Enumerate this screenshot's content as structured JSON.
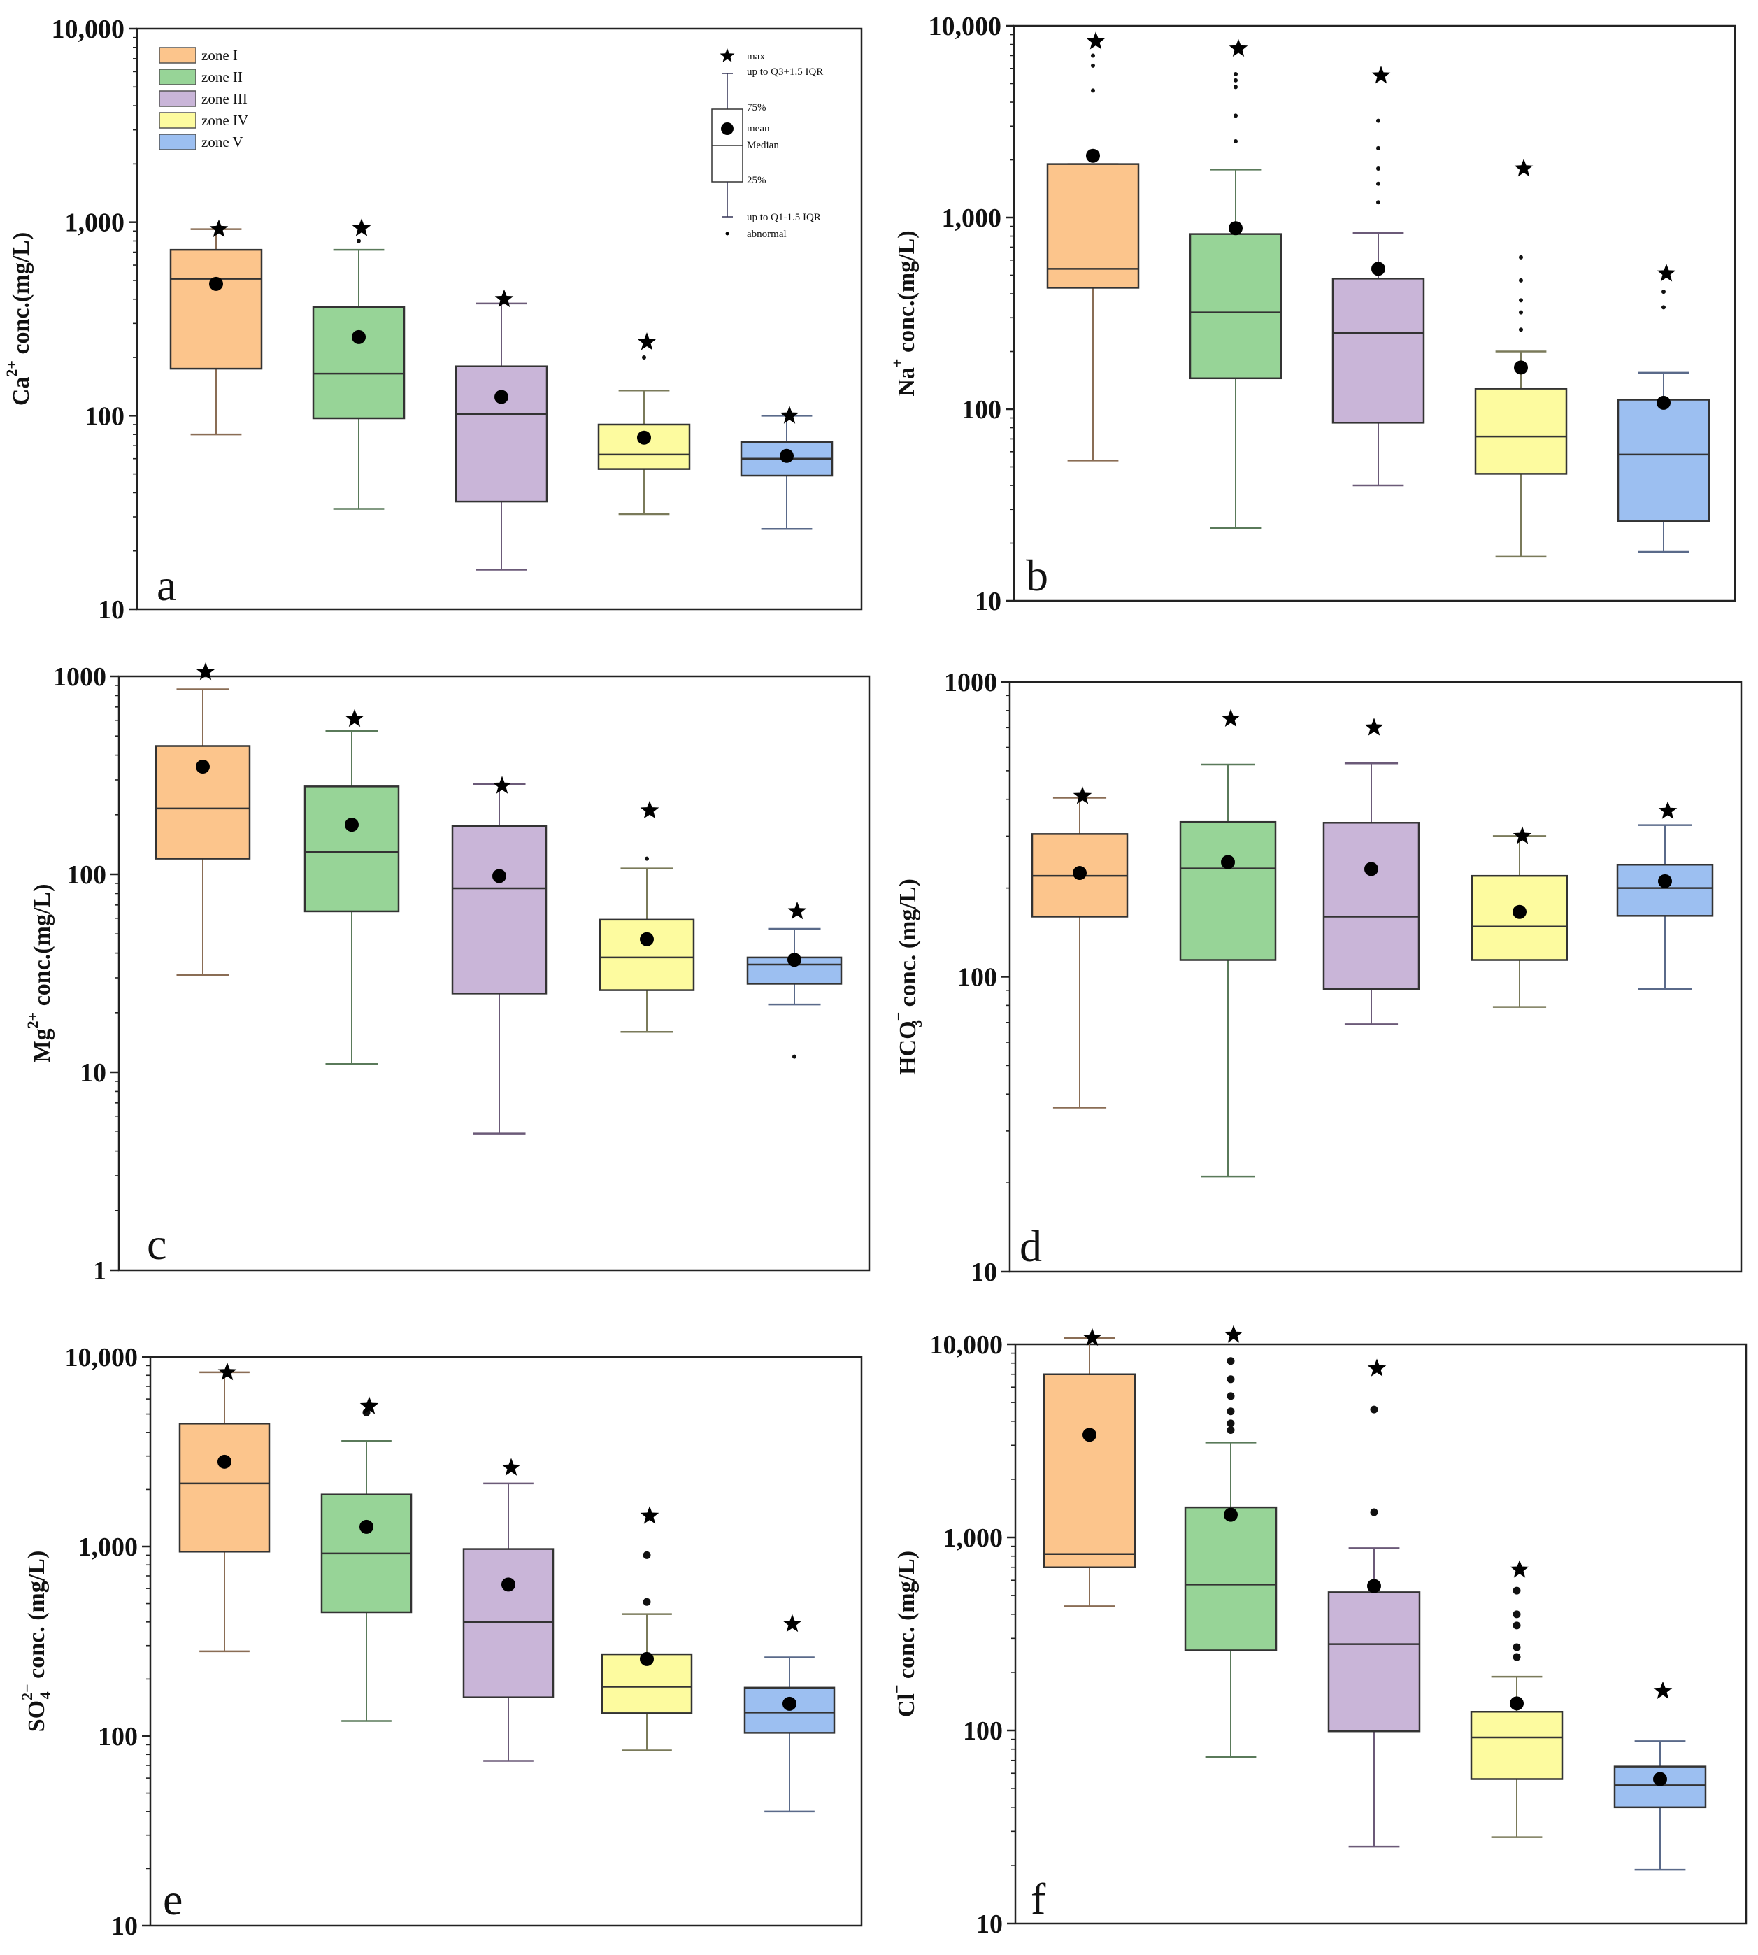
{
  "zones": [
    {
      "name": "zone I",
      "fill": "#fcc58c",
      "stroke": "#8a6d55"
    },
    {
      "name": "zone II",
      "fill": "#97d497",
      "stroke": "#5a7a5a"
    },
    {
      "name": "zone III",
      "fill": "#c9b5d8",
      "stroke": "#6b5a78"
    },
    {
      "name": "zone IV",
      "fill": "#fdfb9f",
      "stroke": "#7a7a5a"
    },
    {
      "name": "zone V",
      "fill": "#9cbff1",
      "stroke": "#5a6a8a"
    }
  ],
  "legend_key": {
    "max": "max",
    "whisker_top": "up to Q3+1.5 IQR",
    "q3": "75%",
    "mean": "mean",
    "median": "Median",
    "q1": "25%",
    "whisker_bottom": "up to Q1-1.5 IQR",
    "abnormal": "abnormal"
  },
  "chart_data": [
    {
      "type": "box",
      "panel": "a",
      "ylabel_main": "Ca",
      "ylabel_sup": "2+",
      "ylabel_sub": "",
      "ylabel_rest": " conc.(mg/L)",
      "yscale": "log",
      "ylim": [
        10,
        10000
      ],
      "yticks": [
        {
          "v": 10,
          "label": "10"
        },
        {
          "v": 100,
          "label": "100"
        },
        {
          "v": 1000,
          "label": "1,000"
        },
        {
          "v": 10000,
          "label": "10,000"
        }
      ],
      "series": [
        {
          "zone": "zone I",
          "whisker_low": 80,
          "q1": 175,
          "median": 510,
          "q3": 720,
          "whisker_high": 920,
          "mean": 480,
          "max": 920,
          "outliers": []
        },
        {
          "zone": "zone II",
          "whisker_low": 33,
          "q1": 97,
          "median": 165,
          "q3": 365,
          "whisker_high": 720,
          "mean": 255,
          "max": 930,
          "outliers": [
            800
          ]
        },
        {
          "zone": "zone III",
          "whisker_low": 16,
          "q1": 36,
          "median": 102,
          "q3": 180,
          "whisker_high": 380,
          "mean": 125,
          "max": 400,
          "outliers": []
        },
        {
          "zone": "zone IV",
          "whisker_low": 31,
          "q1": 53,
          "median": 63,
          "q3": 90,
          "whisker_high": 135,
          "mean": 77,
          "max": 240,
          "outliers": [
            200
          ]
        },
        {
          "zone": "zone V",
          "whisker_low": 26,
          "q1": 49,
          "median": 60,
          "q3": 73,
          "whisker_high": 100,
          "mean": 62,
          "max": 100,
          "outliers": []
        }
      ]
    },
    {
      "type": "box",
      "panel": "b",
      "ylabel_main": "Na",
      "ylabel_sup": "+",
      "ylabel_sub": "",
      "ylabel_rest": " conc.(mg/L)",
      "yscale": "log",
      "ylim": [
        10,
        10000
      ],
      "yticks": [
        {
          "v": 10,
          "label": "10"
        },
        {
          "v": 100,
          "label": "100"
        },
        {
          "v": 1000,
          "label": "1,000"
        },
        {
          "v": 10000,
          "label": "10,000"
        }
      ],
      "series": [
        {
          "zone": "zone I",
          "whisker_low": 54,
          "q1": 430,
          "median": 540,
          "q3": 1900,
          "whisker_high": 1900,
          "mean": 2100,
          "max": 8300,
          "outliers": [
            7000,
            6200,
            4600
          ]
        },
        {
          "zone": "zone II",
          "whisker_low": 24,
          "q1": 145,
          "median": 320,
          "q3": 820,
          "whisker_high": 1780,
          "mean": 880,
          "max": 7600,
          "outliers": [
            5600,
            5200,
            4800,
            3400,
            2500
          ]
        },
        {
          "zone": "zone III",
          "whisker_low": 40,
          "q1": 85,
          "median": 250,
          "q3": 480,
          "whisker_high": 830,
          "mean": 540,
          "max": 5500,
          "outliers": [
            3200,
            2300,
            1800,
            1500,
            1200
          ]
        },
        {
          "zone": "zone IV",
          "whisker_low": 17,
          "q1": 46,
          "median": 72,
          "q3": 128,
          "whisker_high": 200,
          "mean": 165,
          "max": 1800,
          "outliers": [
            620,
            470,
            370,
            320,
            260
          ]
        },
        {
          "zone": "zone V",
          "whisker_low": 18,
          "q1": 26,
          "median": 58,
          "q3": 112,
          "whisker_high": 155,
          "mean": 108,
          "max": 510,
          "outliers": [
            410,
            340
          ]
        }
      ]
    },
    {
      "type": "box",
      "panel": "c",
      "ylabel_main": "Mg",
      "ylabel_sup": "2+",
      "ylabel_sub": "",
      "ylabel_rest": " conc.(mg/L)",
      "yscale": "log",
      "ylim": [
        1,
        1000
      ],
      "yticks": [
        {
          "v": 1,
          "label": "1"
        },
        {
          "v": 10,
          "label": "10"
        },
        {
          "v": 100,
          "label": "100"
        },
        {
          "v": 1000,
          "label": "1000"
        }
      ],
      "series": [
        {
          "zone": "zone I",
          "whisker_low": 31,
          "q1": 120,
          "median": 215,
          "q3": 445,
          "whisker_high": 860,
          "mean": 350,
          "max": 1050,
          "outliers": []
        },
        {
          "zone": "zone II",
          "whisker_low": 11,
          "q1": 65,
          "median": 130,
          "q3": 278,
          "whisker_high": 530,
          "mean": 178,
          "max": 610,
          "outliers": []
        },
        {
          "zone": "zone III",
          "whisker_low": 4.9,
          "q1": 25,
          "median": 85,
          "q3": 175,
          "whisker_high": 285,
          "mean": 98,
          "max": 280,
          "outliers": []
        },
        {
          "zone": "zone IV",
          "whisker_low": 16,
          "q1": 26,
          "median": 38,
          "q3": 59,
          "whisker_high": 107,
          "mean": 47,
          "max": 210,
          "outliers": [
            120
          ]
        },
        {
          "zone": "zone V",
          "whisker_low": 22,
          "q1": 28,
          "median": 35,
          "q3": 38,
          "whisker_high": 53,
          "mean": 37,
          "max": 65,
          "outliers": [
            12
          ]
        }
      ]
    },
    {
      "type": "box",
      "panel": "d",
      "ylabel_main": "HCO",
      "ylabel_sup": "−",
      "ylabel_sub": "3",
      "ylabel_rest": " conc. (mg/L)",
      "yscale": "log",
      "ylim": [
        10,
        1000
      ],
      "yticks": [
        {
          "v": 10,
          "label": "10"
        },
        {
          "v": 100,
          "label": "100"
        },
        {
          "v": 1000,
          "label": "1000"
        }
      ],
      "series": [
        {
          "zone": "zone I",
          "whisker_low": 36,
          "q1": 160,
          "median": 220,
          "q3": 305,
          "whisker_high": 405,
          "mean": 225,
          "max": 410,
          "outliers": []
        },
        {
          "zone": "zone II",
          "whisker_low": 21,
          "q1": 114,
          "median": 233,
          "q3": 335,
          "whisker_high": 525,
          "mean": 245,
          "max": 750,
          "outliers": []
        },
        {
          "zone": "zone III",
          "whisker_low": 69,
          "q1": 91,
          "median": 160,
          "q3": 333,
          "whisker_high": 530,
          "mean": 232,
          "max": 700,
          "outliers": []
        },
        {
          "zone": "zone IV",
          "whisker_low": 79,
          "q1": 114,
          "median": 148,
          "q3": 220,
          "whisker_high": 300,
          "mean": 166,
          "max": 300,
          "outliers": []
        },
        {
          "zone": "zone V",
          "whisker_low": 91,
          "q1": 161,
          "median": 200,
          "q3": 240,
          "whisker_high": 327,
          "mean": 211,
          "max": 365,
          "outliers": []
        }
      ]
    },
    {
      "type": "box",
      "panel": "e",
      "ylabel_main": "SO",
      "ylabel_sup": "2−",
      "ylabel_sub": "4",
      "ylabel_rest": " conc. (mg/L)",
      "yscale": "log",
      "ylim": [
        10,
        10000
      ],
      "yticks": [
        {
          "v": 10,
          "label": "10"
        },
        {
          "v": 100,
          "label": "100"
        },
        {
          "v": 1000,
          "label": "1,000"
        },
        {
          "v": 10000,
          "label": "10,000"
        }
      ],
      "series": [
        {
          "zone": "zone I",
          "whisker_low": 280,
          "q1": 940,
          "median": 2150,
          "q3": 4450,
          "whisker_high": 8300,
          "mean": 2800,
          "max": 8300,
          "outliers": []
        },
        {
          "zone": "zone II",
          "whisker_low": 120,
          "q1": 450,
          "median": 920,
          "q3": 1880,
          "whisker_high": 3600,
          "mean": 1270,
          "max": 5500,
          "outliers": [
            5100
          ]
        },
        {
          "zone": "zone III",
          "whisker_low": 74,
          "q1": 160,
          "median": 400,
          "q3": 970,
          "whisker_high": 2150,
          "mean": 630,
          "max": 2600,
          "outliers": []
        },
        {
          "zone": "zone IV",
          "whisker_low": 84,
          "q1": 132,
          "median": 182,
          "q3": 270,
          "whisker_high": 440,
          "mean": 255,
          "max": 1450,
          "outliers": [
            900,
            510
          ]
        },
        {
          "zone": "zone V",
          "whisker_low": 40,
          "q1": 104,
          "median": 133,
          "q3": 180,
          "whisker_high": 260,
          "mean": 148,
          "max": 390,
          "outliers": []
        }
      ]
    },
    {
      "type": "box",
      "panel": "f",
      "ylabel_main": "Cl",
      "ylabel_sup": "−",
      "ylabel_sub": "",
      "ylabel_rest": " conc. (mg/L)",
      "yscale": "log",
      "ylim": [
        10,
        10000
      ],
      "yticks": [
        {
          "v": 10,
          "label": "10"
        },
        {
          "v": 100,
          "label": "100"
        },
        {
          "v": 1000,
          "label": "1,000"
        },
        {
          "v": 10000,
          "label": "10,000"
        }
      ],
      "series": [
        {
          "zone": "zone I",
          "whisker_low": 440,
          "q1": 700,
          "median": 820,
          "q3": 7000,
          "whisker_high": 10800,
          "mean": 3400,
          "max": 10800,
          "outliers": []
        },
        {
          "zone": "zone II",
          "whisker_low": 73,
          "q1": 260,
          "median": 570,
          "q3": 1430,
          "whisker_high": 3100,
          "mean": 1310,
          "max": 11200,
          "outliers": [
            8200,
            6600,
            5400,
            4500,
            3900,
            3600
          ]
        },
        {
          "zone": "zone III",
          "whisker_low": 25,
          "q1": 99,
          "median": 280,
          "q3": 520,
          "whisker_high": 880,
          "mean": 560,
          "max": 7500,
          "outliers": [
            4600,
            1350
          ]
        },
        {
          "zone": "zone IV",
          "whisker_low": 28,
          "q1": 56,
          "median": 92,
          "q3": 125,
          "whisker_high": 190,
          "mean": 138,
          "max": 680,
          "outliers": [
            530,
            400,
            350,
            270,
            240
          ]
        },
        {
          "zone": "zone V",
          "whisker_low": 19,
          "q1": 40,
          "median": 52,
          "q3": 65,
          "whisker_high": 88,
          "mean": 56,
          "max": 160,
          "outliers": []
        }
      ]
    }
  ]
}
